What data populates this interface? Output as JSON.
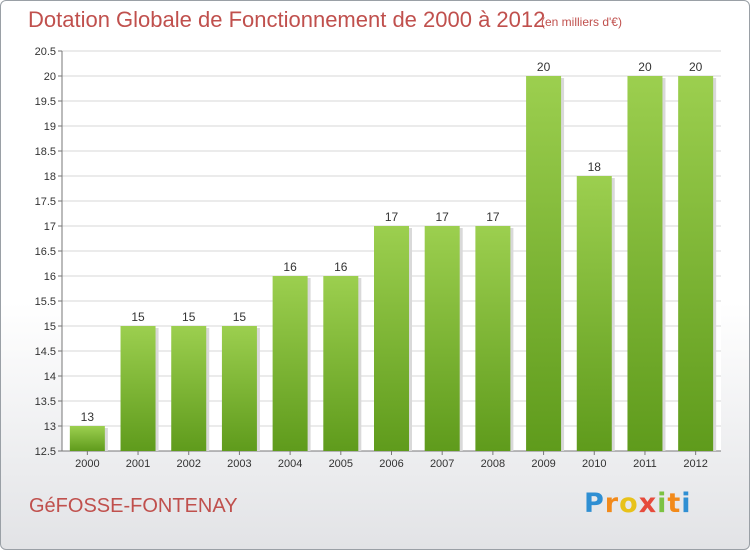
{
  "header": {
    "title": "Dotation Globale de Fonctionnement de 2000 à 2012",
    "unit": "(en milliers d'€)"
  },
  "footer": {
    "commune": "GéFOSSE-FONTENAY",
    "logo_text": "Proxiti"
  },
  "colors": {
    "title": "#c0504d",
    "bar_light": "#9ccf4f",
    "bar_dark": "#5f9b1c",
    "grid": "#d7d7d7",
    "axis_text": "#333333"
  },
  "chart_data": {
    "type": "bar",
    "categories": [
      "2000",
      "2001",
      "2002",
      "2003",
      "2004",
      "2005",
      "2006",
      "2007",
      "2008",
      "2009",
      "2010",
      "2011",
      "2012"
    ],
    "values": [
      13,
      15,
      15,
      15,
      16,
      16,
      17,
      17,
      17,
      20,
      18,
      20,
      20
    ],
    "value_labels": [
      "13",
      "15",
      "15",
      "15",
      "16",
      "16",
      "17",
      "17",
      "17",
      "20",
      "18",
      "20",
      "20"
    ],
    "yticks": [
      "12.5",
      "13",
      "13.5",
      "14",
      "14.5",
      "15",
      "15.5",
      "16",
      "16.5",
      "17",
      "17.5",
      "18",
      "18.5",
      "19",
      "19.5",
      "20",
      "20.5"
    ],
    "ylim": [
      12.5,
      20.5
    ],
    "title": "Dotation Globale de Fonctionnement de 2000 à 2012",
    "ylabel": "(en milliers d'€)",
    "grid": true
  }
}
